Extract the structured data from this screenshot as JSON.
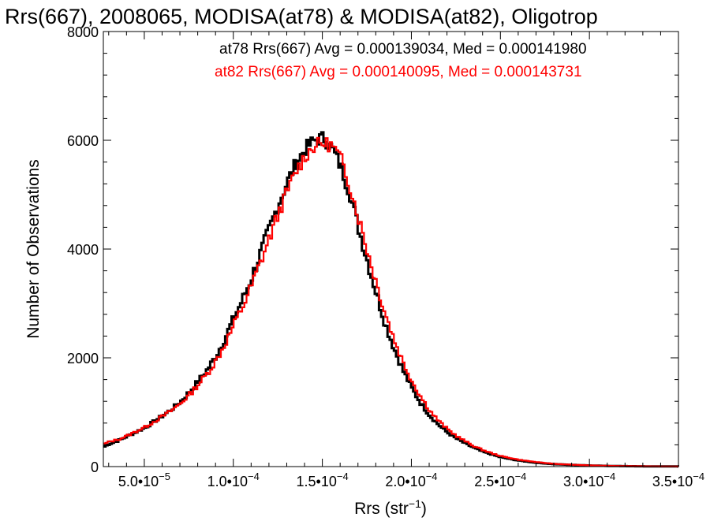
{
  "chart_data": {
    "type": "line",
    "title": "Rrs(667), 2008065, MODISA(at78) & MODISA(at82), Oligotrop",
    "xlabel": "Rrs (str",
    "xlabel_sup": "−1",
    "xlabel_close": ")",
    "ylabel": "Number of Observations",
    "xlim": [
      2.7e-05,
      0.00035
    ],
    "ylim": [
      0,
      8000
    ],
    "grid": false,
    "y_ticks": [
      {
        "value": 0,
        "label": "0"
      },
      {
        "value": 2000,
        "label": "2000"
      },
      {
        "value": 4000,
        "label": "4000"
      },
      {
        "value": 6000,
        "label": "6000"
      },
      {
        "value": 8000,
        "label": "8000"
      }
    ],
    "x_ticks": [
      {
        "value": 5e-05,
        "mant": "5.0•10",
        "exp": "−5"
      },
      {
        "value": 0.0001,
        "mant": "1.0•10",
        "exp": "−4"
      },
      {
        "value": 0.00015,
        "mant": "1.5•10",
        "exp": "−4"
      },
      {
        "value": 0.0002,
        "mant": "2.0•10",
        "exp": "−4"
      },
      {
        "value": 0.00025,
        "mant": "2.5•10",
        "exp": "−4"
      },
      {
        "value": 0.0003,
        "mant": "3.0•10",
        "exp": "−4"
      },
      {
        "value": 0.00035,
        "mant": "3.5•10",
        "exp": "−4"
      }
    ],
    "annotations": [
      {
        "text": "at78 Rrs(667) Avg = 0.000139034, Med = 0.000141980",
        "color": "#000000"
      },
      {
        "text": "at82 Rrs(667) Avg = 0.000140095, Med = 0.000143731",
        "color": "#ff0000"
      }
    ],
    "series": [
      {
        "name": "at78",
        "color": "#000000",
        "x": [
          2.7e-05,
          3e-05,
          3.5e-05,
          4e-05,
          4.5e-05,
          5e-05,
          5.5e-05,
          6e-05,
          6.5e-05,
          7e-05,
          7.5e-05,
          8e-05,
          8.5e-05,
          9e-05,
          9.5e-05,
          0.0001,
          0.000105,
          0.00011,
          0.000115,
          0.00012,
          0.000125,
          0.00013,
          0.000135,
          0.00014,
          0.000145,
          0.00015,
          0.000155,
          0.00016,
          0.000165,
          0.00017,
          0.000175,
          0.00018,
          0.000185,
          0.00019,
          0.000195,
          0.0002,
          0.000205,
          0.00021,
          0.000215,
          0.00022,
          0.000225,
          0.00023,
          0.000235,
          0.00024,
          0.000245,
          0.00025,
          0.00026,
          0.00027,
          0.00028,
          0.00029,
          0.0003,
          0.00031,
          0.00032,
          0.00033,
          0.00034,
          0.00035
        ],
        "y": [
          370,
          420,
          480,
          560,
          640,
          720,
          830,
          940,
          1060,
          1200,
          1380,
          1580,
          1790,
          2050,
          2380,
          2750,
          3100,
          3500,
          3950,
          4400,
          4850,
          5250,
          5600,
          5850,
          6000,
          6050,
          5850,
          5500,
          5000,
          4350,
          3750,
          3150,
          2600,
          2150,
          1750,
          1420,
          1150,
          930,
          760,
          620,
          510,
          420,
          340,
          270,
          220,
          170,
          110,
          70,
          45,
          30,
          20,
          12,
          8,
          5,
          3,
          2
        ]
      },
      {
        "name": "at82",
        "color": "#ff0000",
        "x": [
          2.7e-05,
          3e-05,
          3.5e-05,
          4e-05,
          4.5e-05,
          5e-05,
          5.5e-05,
          6e-05,
          6.5e-05,
          7e-05,
          7.5e-05,
          8e-05,
          8.5e-05,
          9e-05,
          9.5e-05,
          0.0001,
          0.000105,
          0.00011,
          0.000115,
          0.00012,
          0.000125,
          0.00013,
          0.000135,
          0.00014,
          0.000145,
          0.00015,
          0.000155,
          0.00016,
          0.000165,
          0.00017,
          0.000175,
          0.00018,
          0.000185,
          0.00019,
          0.000195,
          0.0002,
          0.000205,
          0.00021,
          0.000215,
          0.00022,
          0.000225,
          0.00023,
          0.000235,
          0.00024,
          0.000245,
          0.00025,
          0.00026,
          0.00027,
          0.00028,
          0.00029,
          0.0003,
          0.00031,
          0.00032,
          0.00033,
          0.00034,
          0.00035
        ],
        "y": [
          420,
          460,
          500,
          570,
          650,
          730,
          830,
          930,
          1040,
          1170,
          1330,
          1520,
          1720,
          1960,
          2270,
          2620,
          2960,
          3350,
          3780,
          4230,
          4680,
          5080,
          5450,
          5720,
          5900,
          5950,
          5900,
          5650,
          5150,
          4550,
          3950,
          3350,
          2800,
          2320,
          1900,
          1560,
          1270,
          1020,
          830,
          680,
          560,
          460,
          370,
          300,
          240,
          190,
          125,
          80,
          50,
          34,
          22,
          14,
          9,
          6,
          3,
          2
        ]
      }
    ]
  }
}
